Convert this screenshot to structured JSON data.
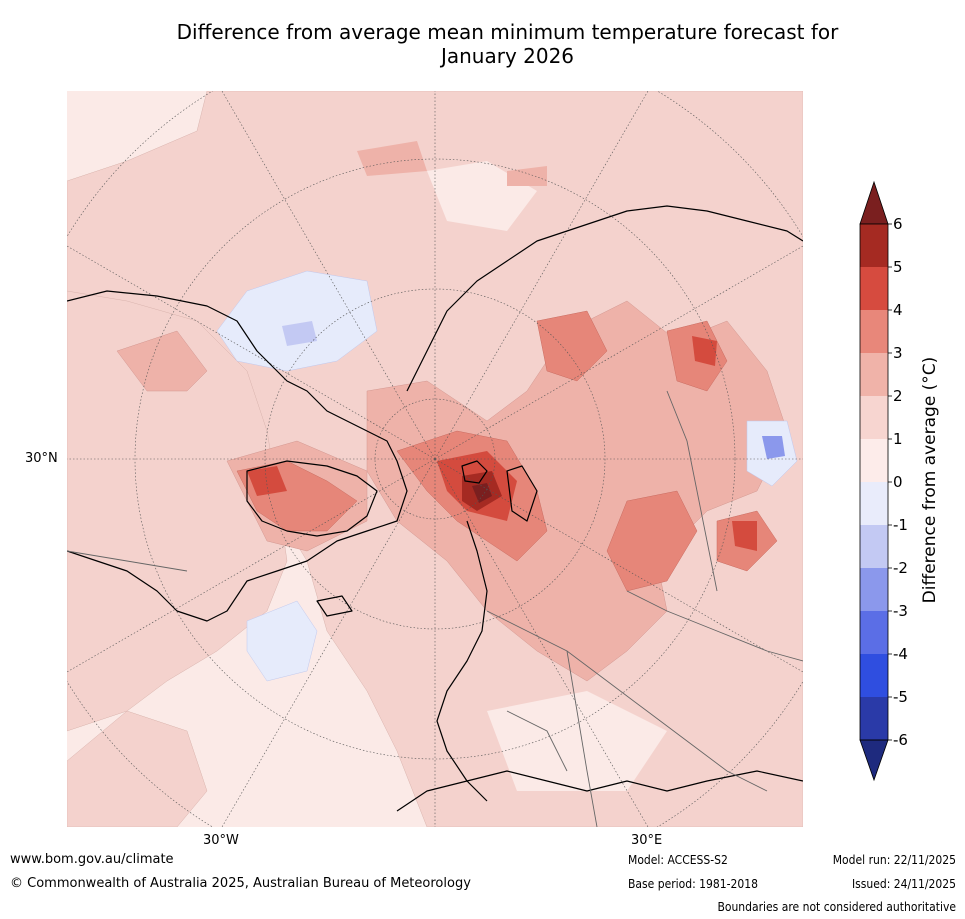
{
  "title_line1": "Difference from average mean minimum temperature forecast for",
  "title_line2": "January 2026",
  "map": {
    "lat_label": "30°N",
    "lon_labels": [
      "30°W",
      "30°E"
    ]
  },
  "colorbar": {
    "label": "Difference from average (°C)",
    "ticks": [
      "6",
      "5",
      "4",
      "3",
      "2",
      "1",
      "0",
      "-1",
      "-2",
      "-3",
      "-4",
      "-5",
      "-6"
    ],
    "colors": [
      "#7a1f1f",
      "#a52a22",
      "#d64b3f",
      "#e8877a",
      "#f0b3a9",
      "#f7d5d0",
      "#fdecea",
      "#e9ecfb",
      "#c3c9f3",
      "#8b98ec",
      "#5b6ee6",
      "#2f4ee0",
      "#2a3aa8",
      "#1e2a7e"
    ]
  },
  "footer": {
    "url": "www.bom.gov.au/climate",
    "copyright": "© Commonwealth of Australia 2025, Australian Bureau of Meteorology",
    "model": "Model: ACCESS-S2",
    "base_period": "Base period: 1981-2018",
    "model_run": "Model run: 22/11/2025",
    "issued": "Issued: 24/11/2025",
    "boundaries": "Boundaries are not considered authoritative"
  }
}
